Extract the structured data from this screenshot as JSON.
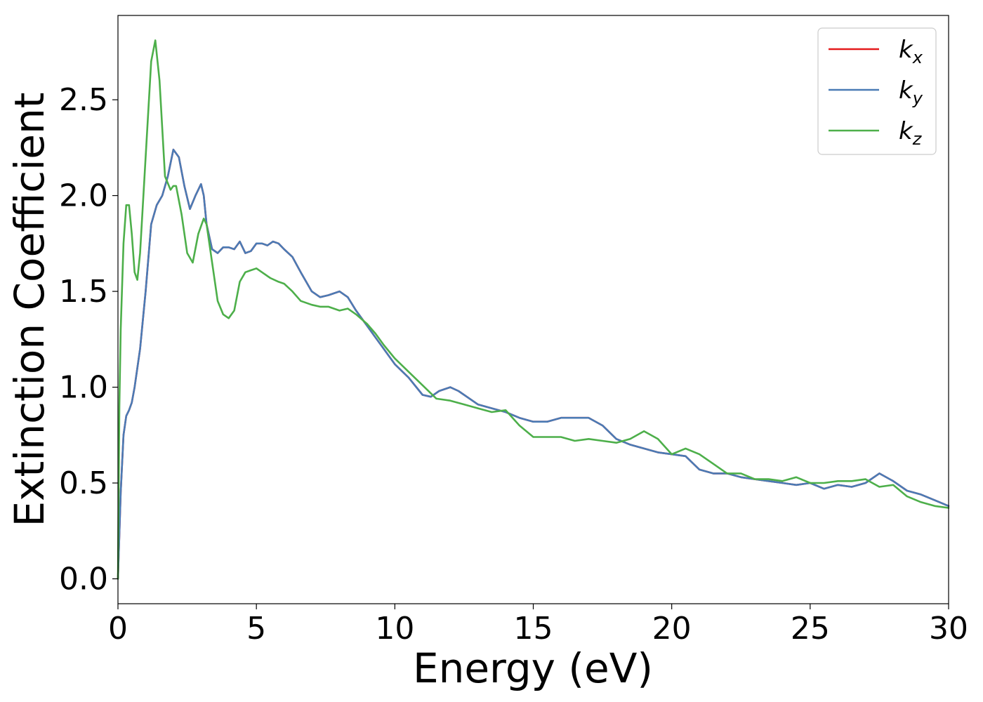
{
  "chart_data": {
    "type": "line",
    "title": "",
    "xlabel": "Energy (eV)",
    "ylabel": "Extinction Coefficient",
    "xlim": [
      0,
      30
    ],
    "ylim": [
      -0.13,
      2.94
    ],
    "xticks": [
      0,
      5,
      10,
      15,
      20,
      25,
      30
    ],
    "xtick_labels": [
      "0",
      "5",
      "10",
      "15",
      "20",
      "25",
      "30"
    ],
    "yticks": [
      0.0,
      0.5,
      1.0,
      1.5,
      2.0,
      2.5
    ],
    "ytick_labels": [
      "0.0",
      "0.5",
      "1.0",
      "1.5",
      "2.0",
      "2.5"
    ],
    "grid": false,
    "legend_position": "top-right",
    "series": [
      {
        "name": "k_x",
        "legend_base": "k",
        "legend_sub": "x",
        "color": "#e41a1c",
        "x": [
          0,
          0.1,
          0.2,
          0.3,
          0.4,
          0.5,
          0.6,
          0.8,
          1.0,
          1.2,
          1.4,
          1.6,
          1.8,
          2.0,
          2.2,
          2.4,
          2.6,
          2.8,
          3.0,
          3.1,
          3.2,
          3.4,
          3.6,
          3.8,
          4.0,
          4.2,
          4.4,
          4.6,
          4.8,
          5.0,
          5.2,
          5.4,
          5.6,
          5.8,
          6.0,
          6.3,
          6.6,
          7.0,
          7.3,
          7.6,
          8.0,
          8.3,
          8.6,
          9.0,
          9.3,
          9.6,
          10.0,
          10.5,
          11.0,
          11.3,
          11.6,
          12.0,
          12.3,
          12.6,
          13.0,
          13.5,
          14.0,
          14.5,
          15.0,
          15.5,
          16.0,
          16.5,
          17.0,
          17.5,
          18.0,
          18.5,
          19.0,
          19.5,
          20.0,
          20.5,
          21.0,
          21.5,
          22.0,
          22.5,
          23.0,
          23.5,
          24.0,
          24.5,
          25.0,
          25.5,
          26.0,
          26.5,
          27.0,
          27.5,
          28.0,
          28.5,
          29.0,
          29.5,
          30.0
        ],
        "y": [
          0.0,
          0.45,
          0.75,
          0.85,
          0.88,
          0.92,
          1.0,
          1.2,
          1.5,
          1.85,
          1.95,
          2.0,
          2.1,
          2.24,
          2.2,
          2.05,
          1.93,
          2.0,
          2.06,
          2.0,
          1.85,
          1.72,
          1.7,
          1.73,
          1.73,
          1.72,
          1.76,
          1.7,
          1.71,
          1.75,
          1.75,
          1.74,
          1.76,
          1.75,
          1.72,
          1.68,
          1.6,
          1.5,
          1.47,
          1.48,
          1.5,
          1.47,
          1.4,
          1.32,
          1.26,
          1.2,
          1.12,
          1.05,
          0.96,
          0.95,
          0.98,
          1.0,
          0.98,
          0.95,
          0.91,
          0.89,
          0.87,
          0.84,
          0.82,
          0.82,
          0.84,
          0.84,
          0.84,
          0.8,
          0.73,
          0.7,
          0.68,
          0.66,
          0.65,
          0.64,
          0.57,
          0.55,
          0.55,
          0.53,
          0.52,
          0.51,
          0.5,
          0.49,
          0.5,
          0.47,
          0.49,
          0.48,
          0.5,
          0.55,
          0.51,
          0.46,
          0.44,
          0.41,
          0.38
        ]
      },
      {
        "name": "k_y",
        "legend_base": "k",
        "legend_sub": "y",
        "color": "#4a7bb5",
        "x": [
          0,
          0.1,
          0.2,
          0.3,
          0.4,
          0.5,
          0.6,
          0.8,
          1.0,
          1.2,
          1.4,
          1.6,
          1.8,
          2.0,
          2.2,
          2.4,
          2.6,
          2.8,
          3.0,
          3.1,
          3.2,
          3.4,
          3.6,
          3.8,
          4.0,
          4.2,
          4.4,
          4.6,
          4.8,
          5.0,
          5.2,
          5.4,
          5.6,
          5.8,
          6.0,
          6.3,
          6.6,
          7.0,
          7.3,
          7.6,
          8.0,
          8.3,
          8.6,
          9.0,
          9.3,
          9.6,
          10.0,
          10.5,
          11.0,
          11.3,
          11.6,
          12.0,
          12.3,
          12.6,
          13.0,
          13.5,
          14.0,
          14.5,
          15.0,
          15.5,
          16.0,
          16.5,
          17.0,
          17.5,
          18.0,
          18.5,
          19.0,
          19.5,
          20.0,
          20.5,
          21.0,
          21.5,
          22.0,
          22.5,
          23.0,
          23.5,
          24.0,
          24.5,
          25.0,
          25.5,
          26.0,
          26.5,
          27.0,
          27.5,
          28.0,
          28.5,
          29.0,
          29.5,
          30.0
        ],
        "y": [
          0.0,
          0.45,
          0.75,
          0.85,
          0.88,
          0.92,
          1.0,
          1.2,
          1.5,
          1.85,
          1.95,
          2.0,
          2.1,
          2.24,
          2.2,
          2.05,
          1.93,
          2.0,
          2.06,
          2.0,
          1.85,
          1.72,
          1.7,
          1.73,
          1.73,
          1.72,
          1.76,
          1.7,
          1.71,
          1.75,
          1.75,
          1.74,
          1.76,
          1.75,
          1.72,
          1.68,
          1.6,
          1.5,
          1.47,
          1.48,
          1.5,
          1.47,
          1.4,
          1.32,
          1.26,
          1.2,
          1.12,
          1.05,
          0.96,
          0.95,
          0.98,
          1.0,
          0.98,
          0.95,
          0.91,
          0.89,
          0.87,
          0.84,
          0.82,
          0.82,
          0.84,
          0.84,
          0.84,
          0.8,
          0.73,
          0.7,
          0.68,
          0.66,
          0.65,
          0.64,
          0.57,
          0.55,
          0.55,
          0.53,
          0.52,
          0.51,
          0.5,
          0.49,
          0.5,
          0.47,
          0.49,
          0.48,
          0.5,
          0.55,
          0.51,
          0.46,
          0.44,
          0.41,
          0.38
        ]
      },
      {
        "name": "k_z",
        "legend_base": "k",
        "legend_sub": "z",
        "color": "#4daf4a",
        "x": [
          0,
          0.05,
          0.1,
          0.2,
          0.3,
          0.4,
          0.5,
          0.6,
          0.7,
          0.8,
          1.0,
          1.2,
          1.35,
          1.5,
          1.7,
          1.9,
          2.0,
          2.1,
          2.3,
          2.5,
          2.7,
          2.9,
          3.1,
          3.2,
          3.4,
          3.6,
          3.8,
          4.0,
          4.2,
          4.4,
          4.6,
          4.8,
          5.0,
          5.2,
          5.5,
          5.8,
          6.0,
          6.3,
          6.6,
          7.0,
          7.3,
          7.6,
          8.0,
          8.3,
          8.6,
          9.0,
          9.3,
          9.6,
          10.0,
          10.5,
          11.0,
          11.5,
          12.0,
          12.5,
          13.0,
          13.5,
          14.0,
          14.5,
          15.0,
          15.5,
          16.0,
          16.5,
          17.0,
          17.5,
          18.0,
          18.5,
          19.0,
          19.5,
          20.0,
          20.5,
          21.0,
          21.5,
          22.0,
          22.5,
          23.0,
          23.5,
          24.0,
          24.5,
          25.0,
          25.5,
          26.0,
          26.5,
          27.0,
          27.5,
          28.0,
          28.5,
          29.0,
          29.5,
          30.0
        ],
        "y": [
          0.0,
          0.9,
          1.3,
          1.75,
          1.95,
          1.95,
          1.8,
          1.6,
          1.56,
          1.7,
          2.2,
          2.7,
          2.81,
          2.6,
          2.1,
          2.03,
          2.05,
          2.05,
          1.9,
          1.7,
          1.65,
          1.8,
          1.88,
          1.85,
          1.65,
          1.45,
          1.38,
          1.36,
          1.4,
          1.55,
          1.6,
          1.61,
          1.62,
          1.6,
          1.57,
          1.55,
          1.54,
          1.5,
          1.45,
          1.43,
          1.42,
          1.42,
          1.4,
          1.41,
          1.38,
          1.33,
          1.28,
          1.22,
          1.15,
          1.08,
          1.01,
          0.94,
          0.93,
          0.91,
          0.89,
          0.87,
          0.88,
          0.8,
          0.74,
          0.74,
          0.74,
          0.72,
          0.73,
          0.72,
          0.71,
          0.73,
          0.77,
          0.73,
          0.65,
          0.68,
          0.65,
          0.6,
          0.55,
          0.55,
          0.52,
          0.52,
          0.51,
          0.53,
          0.5,
          0.5,
          0.51,
          0.51,
          0.52,
          0.48,
          0.49,
          0.43,
          0.4,
          0.38,
          0.37
        ]
      }
    ]
  }
}
